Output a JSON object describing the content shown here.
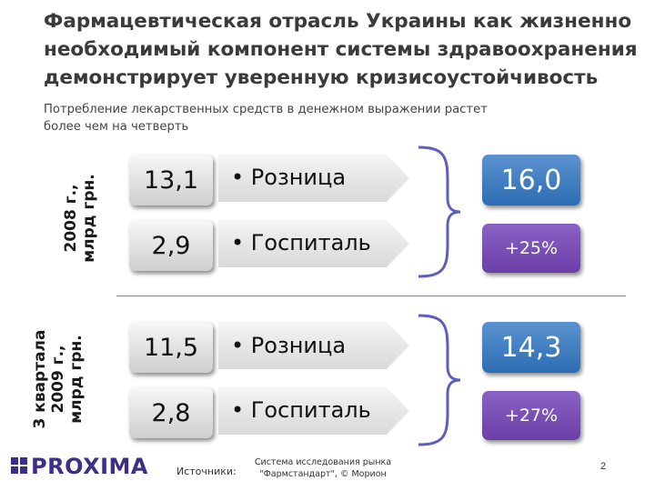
{
  "title": "Фармацевтическая отрасль Украины как жизненно необходимый компонент системы здравоохранения демонстрирует уверенную кризисоустойчивость",
  "subtitle": "Потребление лекарственных средств в денежном выражении растет более чем на четверть",
  "sections": [
    {
      "period_label_lines": [
        "2008 г.,",
        "млрд грн."
      ],
      "rows": [
        {
          "value": "13,1",
          "label": "• Розница"
        },
        {
          "value": "2,9",
          "label": "• Госпиталь"
        }
      ],
      "total": "16,0",
      "growth": "+25%"
    },
    {
      "period_label_lines": [
        "3 квартала",
        "2009 г.,",
        "млрд грн."
      ],
      "rows": [
        {
          "value": "11,5",
          "label": "• Розница"
        },
        {
          "value": "2,8",
          "label": "• Госпиталь"
        }
      ],
      "total": "14,3",
      "growth": "+27%"
    }
  ],
  "footer": {
    "logo_text": "PROXIMA",
    "sources_label": "Источники:",
    "sources_text": "Система исследования рынка \"Фармстандарт\", © Морион",
    "page_number": "2"
  },
  "colors": {
    "total_box": "#3f7fc4",
    "growth_box": "#7a50b8",
    "divider": "#6b8fb8",
    "logo": "#3e2f86"
  }
}
